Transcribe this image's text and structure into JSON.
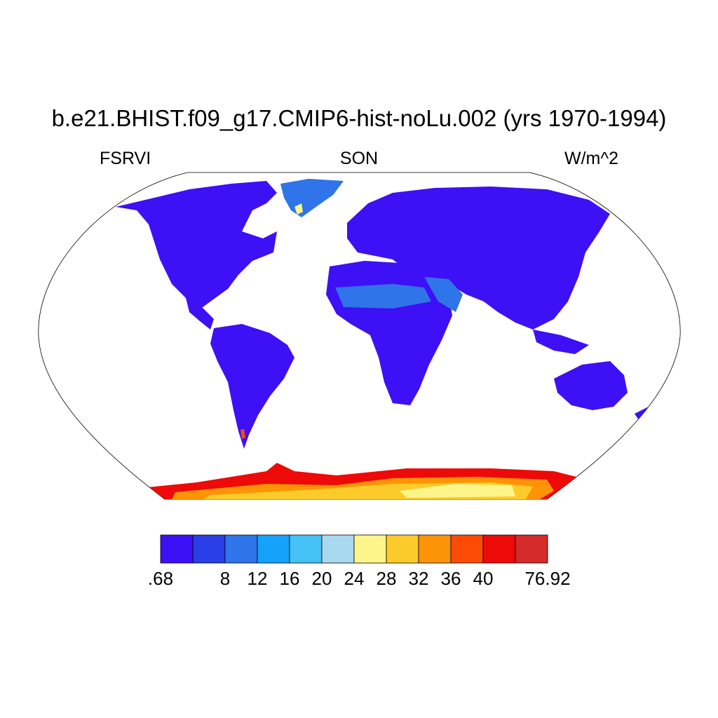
{
  "title": "b.e21.BHIST.f09_g17.CMIP6-hist-noLu.002 (yrs 1970-1994)",
  "variable": "FSRVI",
  "season": "SON",
  "units": "W/m^2",
  "map": {
    "projection": "Robinson",
    "ocean_color": "#ffffff",
    "coastline_color": "#000000"
  },
  "colorbar": {
    "colors": [
      "#3d10f5",
      "#2a3fe5",
      "#2f74e8",
      "#15a2fa",
      "#45c1f5",
      "#a9d9f0",
      "#fef58a",
      "#fcca2a",
      "#fd9306",
      "#fd4a05",
      "#ee0a08",
      "#d42a2a"
    ],
    "labels": [
      {
        "text": ".68",
        "index": 0
      },
      {
        "text": "8",
        "index": 2
      },
      {
        "text": "12",
        "index": 3
      },
      {
        "text": "16",
        "index": 4
      },
      {
        "text": "20",
        "index": 5
      },
      {
        "text": "24",
        "index": 6
      },
      {
        "text": "28",
        "index": 7
      },
      {
        "text": "32",
        "index": 8
      },
      {
        "text": "36",
        "index": 9
      },
      {
        "text": "40",
        "index": 10
      },
      {
        "text": "76.92",
        "index": 12
      }
    ]
  }
}
